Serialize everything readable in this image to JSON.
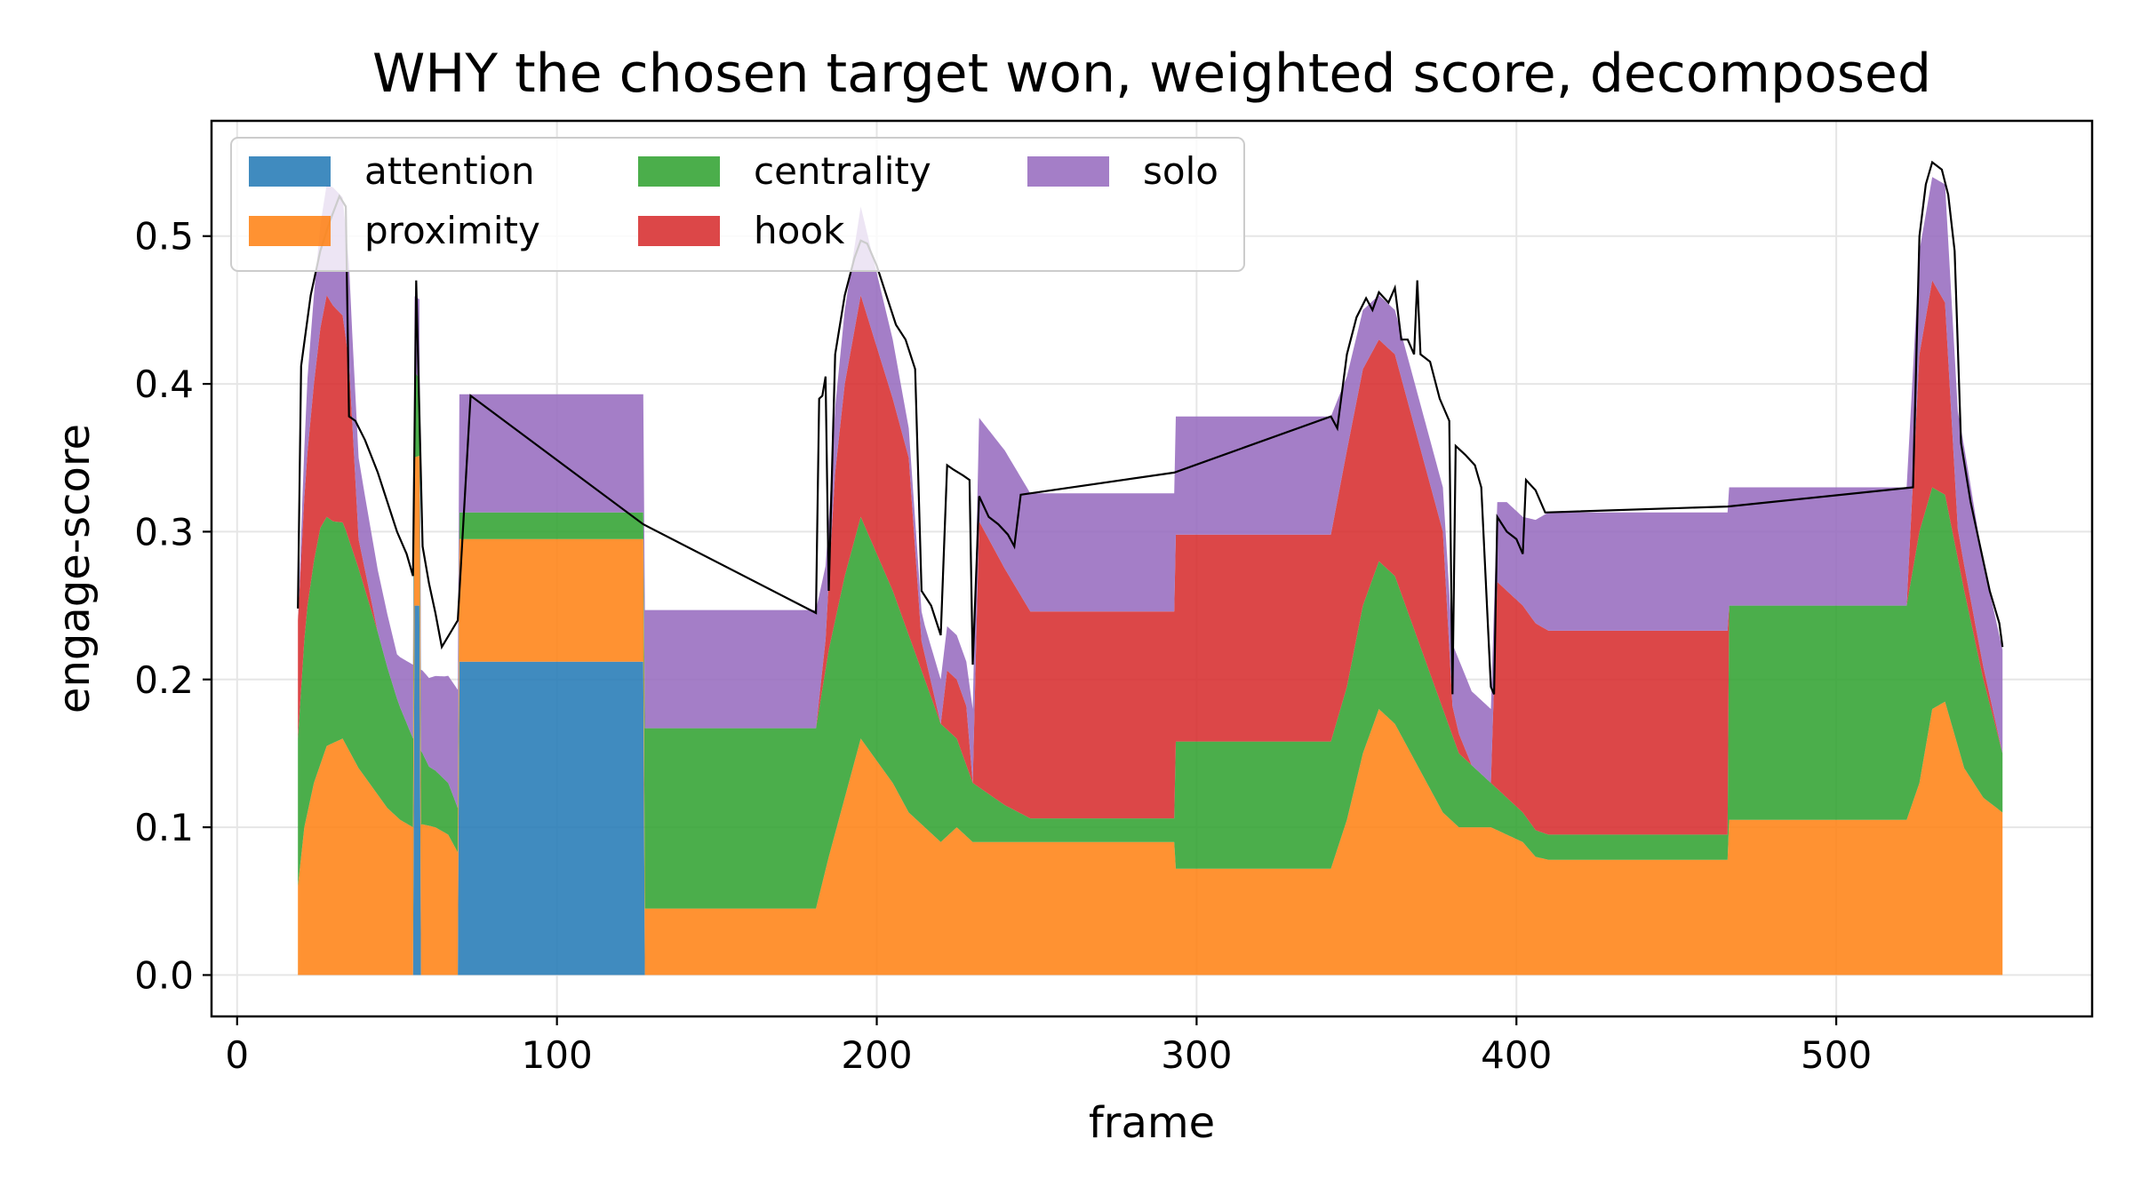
{
  "chart_data": {
    "type": "area",
    "title": "WHY the chosen target won, weighted score, decomposed",
    "xlabel": "frame",
    "ylabel": "engage-score",
    "xlim": [
      -8,
      580
    ],
    "ylim": [
      -0.028,
      0.578
    ],
    "xticks": [
      0,
      100,
      200,
      300,
      400,
      500
    ],
    "yticks": [
      0.0,
      0.1,
      0.2,
      0.3,
      0.4,
      0.5
    ],
    "xtick_labels": [
      "0",
      "100",
      "200",
      "300",
      "400",
      "500"
    ],
    "ytick_labels": [
      "0.0",
      "0.1",
      "0.2",
      "0.3",
      "0.4",
      "0.5"
    ],
    "grid": true,
    "legend_position": "top-left",
    "stacking": "stacked",
    "series": [
      {
        "name": "attention",
        "color": "#1f77b4",
        "points": [
          [
            19,
            0
          ],
          [
            55,
            0
          ],
          [
            55,
            0.25
          ],
          [
            57,
            0.25
          ],
          [
            57,
            0
          ],
          [
            69,
            0
          ],
          [
            69,
            0.212
          ],
          [
            127,
            0.212
          ],
          [
            127,
            0
          ],
          [
            552,
            0
          ]
        ]
      },
      {
        "name": "proximity",
        "color": "#ff7f0e",
        "points": [
          [
            19,
            0.06
          ],
          [
            21,
            0.1
          ],
          [
            24,
            0.13
          ],
          [
            28,
            0.155
          ],
          [
            33,
            0.16
          ],
          [
            38,
            0.14
          ],
          [
            43,
            0.125
          ],
          [
            47,
            0.113
          ],
          [
            51,
            0.105
          ],
          [
            55,
            0.1
          ],
          [
            58,
            0.102
          ],
          [
            62,
            0.1
          ],
          [
            66,
            0.095
          ],
          [
            69,
            0.083
          ],
          [
            127,
            0.083
          ],
          [
            127,
            0.045
          ],
          [
            181,
            0.045
          ],
          [
            185,
            0.08
          ],
          [
            190,
            0.12
          ],
          [
            195,
            0.16
          ],
          [
            200,
            0.145
          ],
          [
            205,
            0.13
          ],
          [
            210,
            0.11
          ],
          [
            215,
            0.1
          ],
          [
            220,
            0.09
          ],
          [
            225,
            0.1
          ],
          [
            230,
            0.09
          ],
          [
            240,
            0.09
          ],
          [
            248,
            0.09
          ],
          [
            293,
            0.09
          ],
          [
            293,
            0.072
          ],
          [
            342,
            0.072
          ],
          [
            347,
            0.105
          ],
          [
            352,
            0.15
          ],
          [
            357,
            0.18
          ],
          [
            362,
            0.17
          ],
          [
            367,
            0.15
          ],
          [
            372,
            0.13
          ],
          [
            377,
            0.11
          ],
          [
            382,
            0.1
          ],
          [
            392,
            0.1
          ],
          [
            397,
            0.095
          ],
          [
            402,
            0.09
          ],
          [
            406,
            0.08
          ],
          [
            410,
            0.078
          ],
          [
            466,
            0.078
          ],
          [
            466,
            0.105
          ],
          [
            522,
            0.105
          ],
          [
            526,
            0.13
          ],
          [
            530,
            0.18
          ],
          [
            534,
            0.185
          ],
          [
            540,
            0.14
          ],
          [
            546,
            0.12
          ],
          [
            552,
            0.11
          ]
        ]
      },
      {
        "name": "centrality",
        "color": "#2ca02c",
        "points": [
          [
            19,
            0.1
          ],
          [
            22,
            0.14
          ],
          [
            26,
            0.16
          ],
          [
            30,
            0.15
          ],
          [
            34,
            0.145
          ],
          [
            38,
            0.135
          ],
          [
            44,
            0.11
          ],
          [
            50,
            0.08
          ],
          [
            55,
            0.06
          ],
          [
            60,
            0.04
          ],
          [
            66,
            0.035
          ],
          [
            69,
            0.03
          ],
          [
            69,
            0.018
          ],
          [
            127,
            0.018
          ],
          [
            127,
            0.122
          ],
          [
            181,
            0.122
          ],
          [
            185,
            0.14
          ],
          [
            190,
            0.15
          ],
          [
            195,
            0.15
          ],
          [
            200,
            0.14
          ],
          [
            205,
            0.13
          ],
          [
            210,
            0.12
          ],
          [
            215,
            0.1
          ],
          [
            220,
            0.08
          ],
          [
            225,
            0.06
          ],
          [
            230,
            0.04
          ],
          [
            240,
            0.025
          ],
          [
            248,
            0.016
          ],
          [
            293,
            0.016
          ],
          [
            293,
            0.086
          ],
          [
            342,
            0.086
          ],
          [
            347,
            0.09
          ],
          [
            352,
            0.1
          ],
          [
            357,
            0.1
          ],
          [
            362,
            0.1
          ],
          [
            367,
            0.09
          ],
          [
            372,
            0.08
          ],
          [
            377,
            0.07
          ],
          [
            382,
            0.05
          ],
          [
            392,
            0.03
          ],
          [
            397,
            0.025
          ],
          [
            402,
            0.02
          ],
          [
            406,
            0.018
          ],
          [
            410,
            0.017
          ],
          [
            466,
            0.017
          ],
          [
            466,
            0.145
          ],
          [
            522,
            0.145
          ],
          [
            526,
            0.17
          ],
          [
            530,
            0.15
          ],
          [
            534,
            0.14
          ],
          [
            540,
            0.12
          ],
          [
            546,
            0.08
          ],
          [
            552,
            0.04
          ]
        ]
      },
      {
        "name": "hook",
        "color": "#d62728",
        "points": [
          [
            19,
            0.08
          ],
          [
            24,
            0.12
          ],
          [
            28,
            0.15
          ],
          [
            33,
            0.14
          ],
          [
            35,
            0.12
          ],
          [
            38,
            0.02
          ],
          [
            44,
            0.0
          ],
          [
            55,
            0.0
          ],
          [
            69,
            0.0
          ],
          [
            127,
            0.0
          ],
          [
            181,
            0.0
          ],
          [
            184,
            0.02
          ],
          [
            187,
            0.1
          ],
          [
            190,
            0.13
          ],
          [
            195,
            0.15
          ],
          [
            200,
            0.14
          ],
          [
            205,
            0.13
          ],
          [
            210,
            0.12
          ],
          [
            214,
            0.02
          ],
          [
            220,
            0.0
          ],
          [
            222,
            0.04
          ],
          [
            228,
            0.04
          ],
          [
            230,
            0.0
          ],
          [
            232,
            0.18
          ],
          [
            248,
            0.14
          ],
          [
            293,
            0.14
          ],
          [
            293,
            0.14
          ],
          [
            342,
            0.14
          ],
          [
            347,
            0.16
          ],
          [
            352,
            0.16
          ],
          [
            357,
            0.15
          ],
          [
            362,
            0.15
          ],
          [
            367,
            0.14
          ],
          [
            372,
            0.13
          ],
          [
            377,
            0.12
          ],
          [
            380,
            0.02
          ],
          [
            386,
            0.0
          ],
          [
            392,
            0.0
          ],
          [
            394,
            0.14
          ],
          [
            402,
            0.14
          ],
          [
            406,
            0.14
          ],
          [
            410,
            0.138
          ],
          [
            466,
            0.138
          ],
          [
            466,
            0.0
          ],
          [
            522,
            0.0
          ],
          [
            526,
            0.12
          ],
          [
            530,
            0.14
          ],
          [
            534,
            0.13
          ],
          [
            538,
            0.02
          ],
          [
            552,
            0.0
          ]
        ]
      },
      {
        "name": "solo",
        "color": "#9467bd",
        "points": [
          [
            19,
            0.0
          ],
          [
            22,
            0.05
          ],
          [
            26,
            0.07
          ],
          [
            30,
            0.08
          ],
          [
            33,
            0.08
          ],
          [
            36,
            0.06
          ],
          [
            40,
            0.05
          ],
          [
            45,
            0.04
          ],
          [
            50,
            0.03
          ],
          [
            55,
            0.05
          ],
          [
            60,
            0.06
          ],
          [
            65,
            0.07
          ],
          [
            69,
            0.08
          ],
          [
            69,
            0.08
          ],
          [
            127,
            0.08
          ],
          [
            127,
            0.08
          ],
          [
            181,
            0.08
          ],
          [
            185,
            0.04
          ],
          [
            190,
            0.05
          ],
          [
            195,
            0.06
          ],
          [
            200,
            0.05
          ],
          [
            205,
            0.04
          ],
          [
            210,
            0.02
          ],
          [
            215,
            0.02
          ],
          [
            220,
            0.03
          ],
          [
            228,
            0.03
          ],
          [
            232,
            0.07
          ],
          [
            240,
            0.08
          ],
          [
            248,
            0.08
          ],
          [
            293,
            0.08
          ],
          [
            293,
            0.08
          ],
          [
            342,
            0.08
          ],
          [
            347,
            0.05
          ],
          [
            352,
            0.04
          ],
          [
            357,
            0.03
          ],
          [
            362,
            0.03
          ],
          [
            367,
            0.03
          ],
          [
            372,
            0.03
          ],
          [
            377,
            0.03
          ],
          [
            382,
            0.05
          ],
          [
            392,
            0.05
          ],
          [
            397,
            0.06
          ],
          [
            402,
            0.06
          ],
          [
            406,
            0.07
          ],
          [
            410,
            0.08
          ],
          [
            466,
            0.08
          ],
          [
            466,
            0.08
          ],
          [
            522,
            0.08
          ],
          [
            526,
            0.07
          ],
          [
            530,
            0.07
          ],
          [
            534,
            0.08
          ],
          [
            540,
            0.08
          ],
          [
            546,
            0.07
          ],
          [
            552,
            0.07
          ]
        ]
      }
    ],
    "total_line": {
      "color": "#000000",
      "points": [
        [
          19,
          0.248
        ],
        [
          20,
          0.412
        ],
        [
          23,
          0.46
        ],
        [
          26,
          0.49
        ],
        [
          29,
          0.51
        ],
        [
          32,
          0.527
        ],
        [
          34,
          0.52
        ],
        [
          35,
          0.378
        ],
        [
          37,
          0.375
        ],
        [
          40,
          0.362
        ],
        [
          44,
          0.34
        ],
        [
          47,
          0.32
        ],
        [
          50,
          0.3
        ],
        [
          53,
          0.285
        ],
        [
          55,
          0.27
        ],
        [
          56,
          0.47
        ],
        [
          58,
          0.29
        ],
        [
          60,
          0.265
        ],
        [
          62,
          0.245
        ],
        [
          64,
          0.222
        ],
        [
          69,
          0.24
        ],
        [
          73,
          0.392
        ],
        [
          127,
          0.305
        ],
        [
          181,
          0.245
        ],
        [
          182,
          0.39
        ],
        [
          183,
          0.392
        ],
        [
          184,
          0.405
        ],
        [
          185,
          0.26
        ],
        [
          187,
          0.42
        ],
        [
          190,
          0.46
        ],
        [
          193,
          0.485
        ],
        [
          195,
          0.497
        ],
        [
          197,
          0.495
        ],
        [
          200,
          0.48
        ],
        [
          203,
          0.46
        ],
        [
          206,
          0.44
        ],
        [
          209,
          0.43
        ],
        [
          212,
          0.41
        ],
        [
          214,
          0.26
        ],
        [
          217,
          0.25
        ],
        [
          220,
          0.23
        ],
        [
          222,
          0.345
        ],
        [
          224,
          0.342
        ],
        [
          227,
          0.338
        ],
        [
          229,
          0.335
        ],
        [
          230,
          0.21
        ],
        [
          232,
          0.324
        ],
        [
          235,
          0.31
        ],
        [
          238,
          0.305
        ],
        [
          241,
          0.298
        ],
        [
          243,
          0.29
        ],
        [
          245,
          0.325
        ],
        [
          293,
          0.34
        ],
        [
          342,
          0.378
        ],
        [
          344,
          0.37
        ],
        [
          347,
          0.42
        ],
        [
          350,
          0.445
        ],
        [
          353,
          0.458
        ],
        [
          355,
          0.45
        ],
        [
          357,
          0.462
        ],
        [
          360,
          0.455
        ],
        [
          362,
          0.465
        ],
        [
          364,
          0.43
        ],
        [
          366,
          0.43
        ],
        [
          368,
          0.42
        ],
        [
          369,
          0.47
        ],
        [
          370,
          0.42
        ],
        [
          373,
          0.415
        ],
        [
          376,
          0.39
        ],
        [
          379,
          0.375
        ],
        [
          380,
          0.19
        ],
        [
          381,
          0.358
        ],
        [
          384,
          0.352
        ],
        [
          387,
          0.345
        ],
        [
          389,
          0.33
        ],
        [
          392,
          0.195
        ],
        [
          393,
          0.19
        ],
        [
          394,
          0.31
        ],
        [
          397,
          0.3
        ],
        [
          400,
          0.295
        ],
        [
          402,
          0.285
        ],
        [
          403,
          0.335
        ],
        [
          406,
          0.328
        ],
        [
          409,
          0.313
        ],
        [
          466,
          0.317
        ],
        [
          524,
          0.33
        ],
        [
          526,
          0.5
        ],
        [
          528,
          0.535
        ],
        [
          530,
          0.55
        ],
        [
          533,
          0.545
        ],
        [
          535,
          0.528
        ],
        [
          537,
          0.49
        ],
        [
          539,
          0.36
        ],
        [
          542,
          0.32
        ],
        [
          545,
          0.29
        ],
        [
          548,
          0.26
        ],
        [
          551,
          0.238
        ],
        [
          552,
          0.222
        ]
      ]
    }
  }
}
